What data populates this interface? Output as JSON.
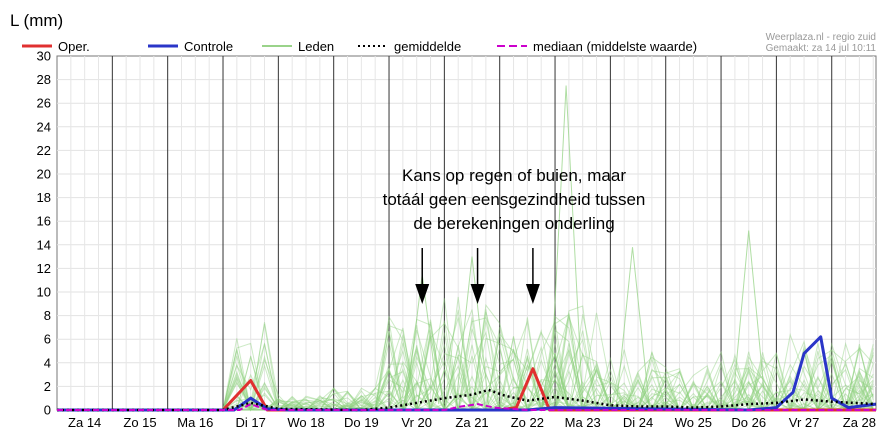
{
  "chart_data": {
    "type": "line",
    "ylabel": "L (mm)",
    "ylim": [
      0,
      30
    ],
    "yticks": [
      0,
      2,
      4,
      6,
      8,
      10,
      12,
      14,
      16,
      18,
      20,
      22,
      24,
      26,
      28,
      30
    ],
    "grid": true,
    "x_labels": [
      "Za 14",
      "Zo 15",
      "Ma 16",
      "Di 17",
      "Wo 18",
      "Do 19",
      "Vr 20",
      "Za 21",
      "Zo 22",
      "Ma 23",
      "Di 24",
      "Wo 25",
      "Do 26",
      "Vr 27",
      "Za 28"
    ],
    "xlim": [
      0,
      14.8
    ],
    "legend": {
      "placement": "top",
      "entries": [
        {
          "label": "Oper.",
          "color": "#e03030",
          "style": "solid"
        },
        {
          "label": "Controle",
          "color": "#2a35c8",
          "style": "solid"
        },
        {
          "label": "Leden",
          "color": "#9ad38a",
          "style": "solid"
        },
        {
          "label": "gemiddelde",
          "color": "#000000",
          "style": "dotted"
        },
        {
          "label": "mediaan (middelste waarde)",
          "color": "#cc00cc",
          "style": "dashed"
        }
      ]
    },
    "source_lines": [
      "Weerplaza.nl - regio zuid",
      "Gemaakt: za 14 jul 10:11"
    ],
    "annotation": {
      "lines": [
        "Kans op regen of buien, maar",
        "totáál geen eensgezindheid tussen",
        "de berekeningen onderling"
      ],
      "arrow_x": [
        6.6,
        7.6,
        8.6
      ]
    },
    "series": [
      {
        "name": "Oper.",
        "color": "#e03030",
        "x": [
          0,
          3.0,
          3.5,
          3.8,
          4.1,
          8.0,
          8.3,
          8.6,
          8.9,
          9.3,
          14.8
        ],
        "y": [
          0,
          0,
          2.5,
          0,
          0,
          0,
          0.2,
          3.5,
          0,
          0,
          0
        ]
      },
      {
        "name": "Controle",
        "color": "#2a35c8",
        "x": [
          0,
          3.2,
          3.5,
          3.8,
          4.2,
          8.5,
          9.0,
          12.5,
          13.0,
          13.3,
          13.5,
          13.8,
          14.0,
          14.3,
          14.8
        ],
        "y": [
          0,
          0,
          1.0,
          0.1,
          0,
          0,
          0.2,
          0,
          0.2,
          1.5,
          4.8,
          6.2,
          1.0,
          0.2,
          0.5
        ]
      },
      {
        "name": "gemiddelde",
        "color": "#000000",
        "x": [
          0,
          3.0,
          3.5,
          4.0,
          5.5,
          6.0,
          6.5,
          7.0,
          7.5,
          7.8,
          8.1,
          8.5,
          9.0,
          9.5,
          10.0,
          10.5,
          11.0,
          11.5,
          12.0,
          12.5,
          13.0,
          13.5,
          14.0,
          14.8
        ],
        "y": [
          0,
          0,
          0.6,
          0.1,
          0,
          0.2,
          0.6,
          1.0,
          1.3,
          1.7,
          1.2,
          0.8,
          1.1,
          0.8,
          0.4,
          0.3,
          0.3,
          0.2,
          0.3,
          0.5,
          0.6,
          0.9,
          0.7,
          0.5
        ]
      },
      {
        "name": "mediaan (middelste waarde)",
        "color": "#cc00cc",
        "x": [
          0,
          3.3,
          3.5,
          3.8,
          7.0,
          7.3,
          7.6,
          7.9,
          8.5,
          14.8
        ],
        "y": [
          0,
          0,
          0.5,
          0,
          0,
          0.3,
          0.5,
          0.2,
          0,
          0
        ]
      }
    ]
  }
}
